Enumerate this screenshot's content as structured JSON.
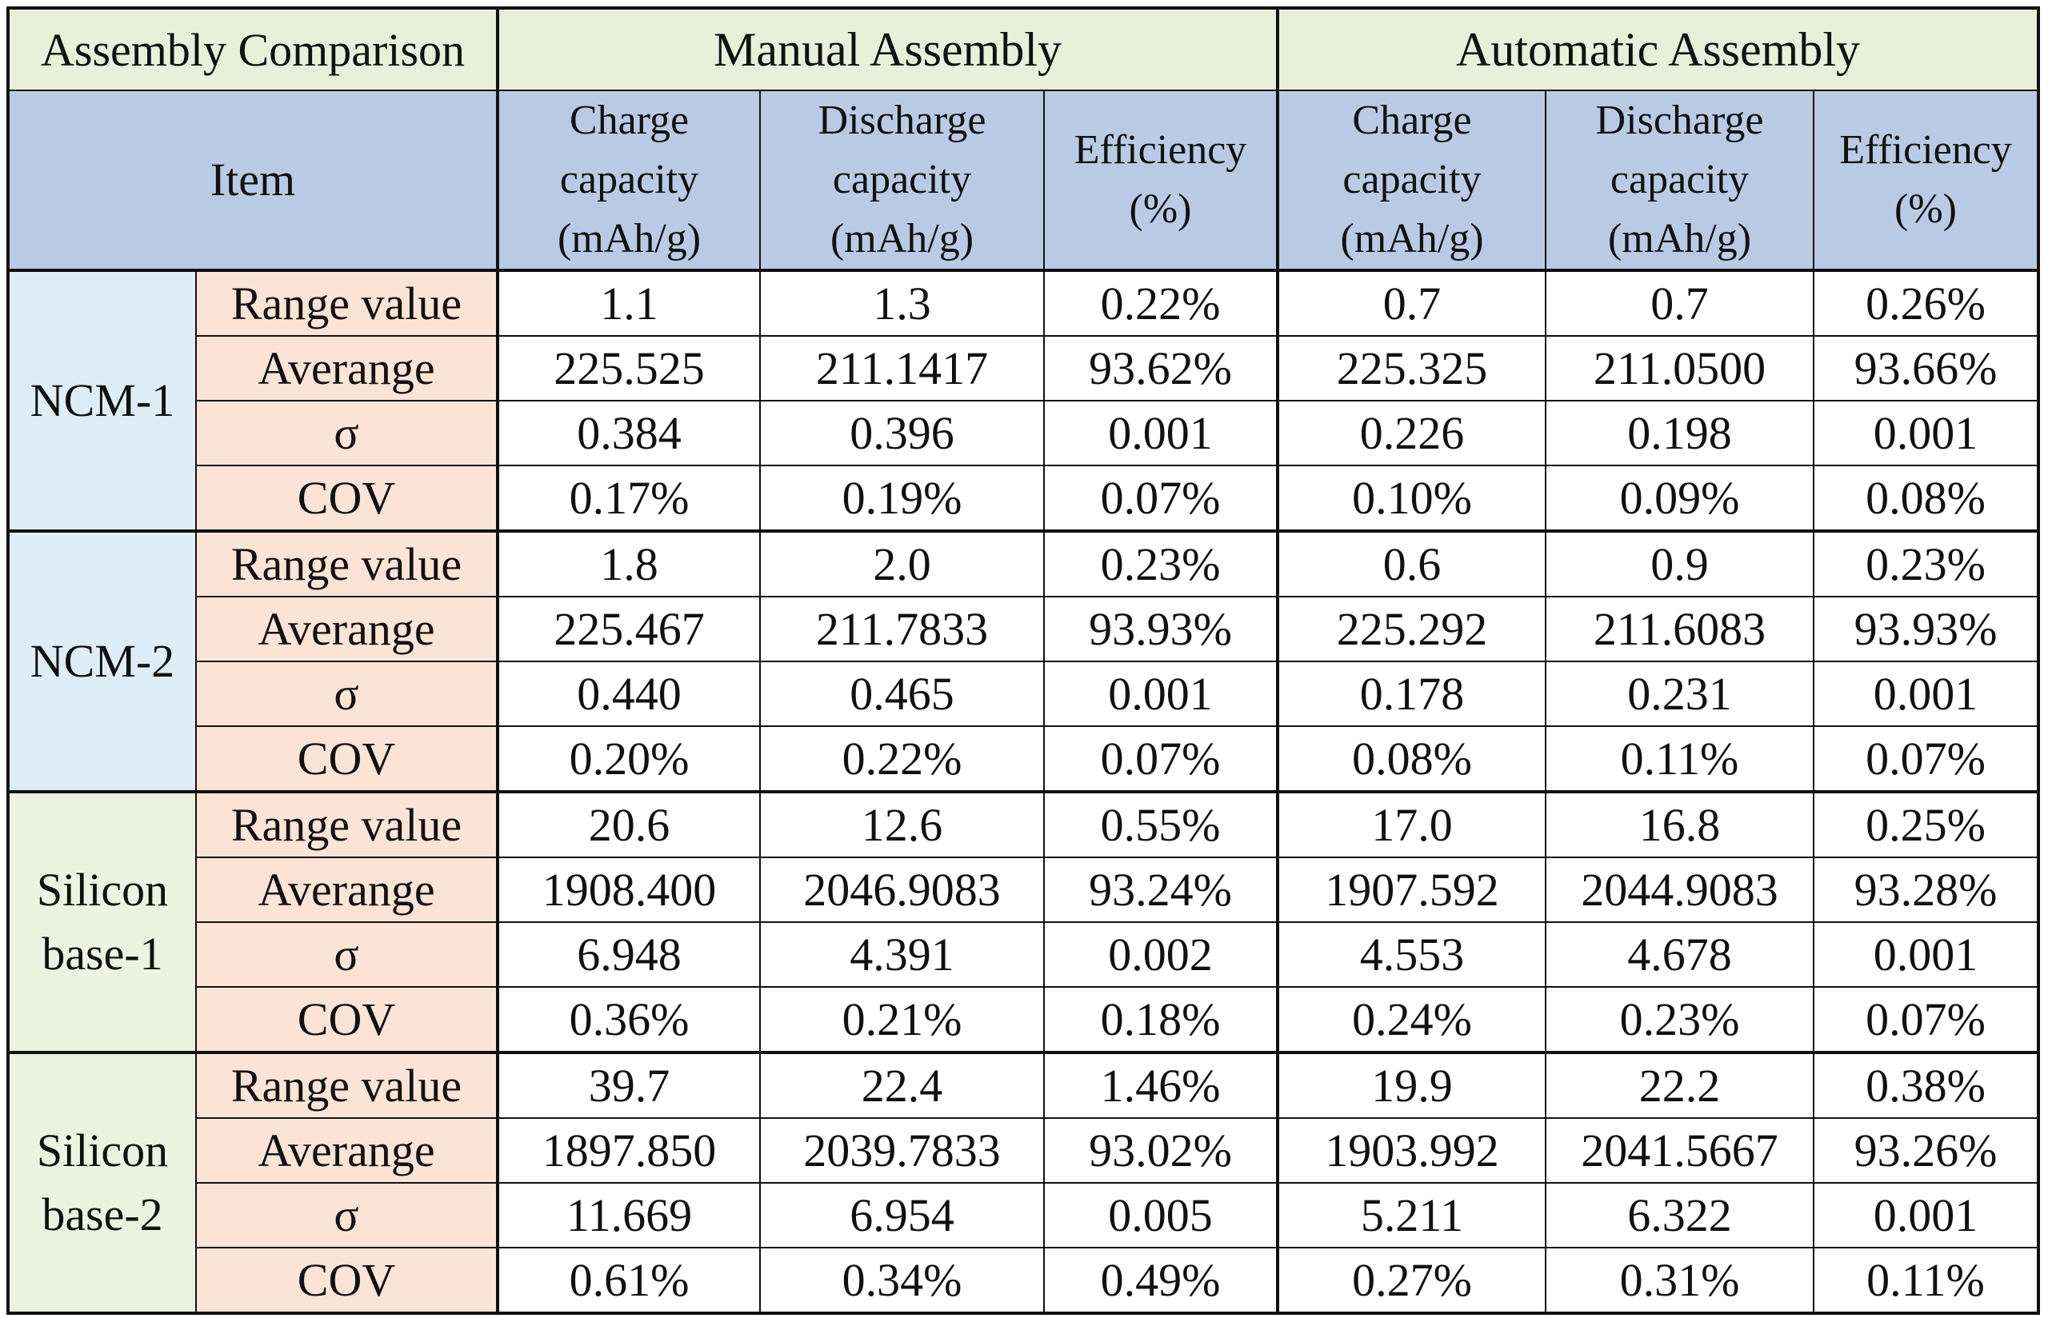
{
  "table": {
    "corner_title": "Assembly Comparison",
    "manual_title": "Manual Assembly",
    "automatic_title": "Automatic Assembly",
    "item_label": "Item",
    "metric_headers": [
      [
        "Charge",
        "capacity",
        "(mAh/g)"
      ],
      [
        "Discharge",
        "capacity",
        "(mAh/g)"
      ],
      [
        "Efficiency",
        "(%)"
      ],
      [
        "Charge",
        "capacity",
        "(mAh/g)"
      ],
      [
        "Discharge",
        "capacity",
        "(mAh/g)"
      ],
      [
        "Efficiency",
        "(%)"
      ]
    ],
    "stat_labels": [
      "Range value",
      "Averange",
      "σ",
      "COV"
    ],
    "groups": [
      {
        "name_lines": [
          "NCM-1"
        ],
        "rows": [
          [
            "1.1",
            "1.3",
            "0.22%",
            "0.7",
            "0.7",
            "0.26%"
          ],
          [
            "225.525",
            "211.1417",
            "93.62%",
            "225.325",
            "211.0500",
            "93.66%"
          ],
          [
            "0.384",
            "0.396",
            "0.001",
            "0.226",
            "0.198",
            "0.001"
          ],
          [
            "0.17%",
            "0.19%",
            "0.07%",
            "0.10%",
            "0.09%",
            "0.08%"
          ]
        ]
      },
      {
        "name_lines": [
          "NCM-2"
        ],
        "rows": [
          [
            "1.8",
            "2.0",
            "0.23%",
            "0.6",
            "0.9",
            "0.23%"
          ],
          [
            "225.467",
            "211.7833",
            "93.93%",
            "225.292",
            "211.6083",
            "93.93%"
          ],
          [
            "0.440",
            "0.465",
            "0.001",
            "0.178",
            "0.231",
            "0.001"
          ],
          [
            "0.20%",
            "0.22%",
            "0.07%",
            "0.08%",
            "0.11%",
            "0.07%"
          ]
        ]
      },
      {
        "name_lines": [
          "Silicon",
          "base-1"
        ],
        "rows": [
          [
            "20.6",
            "12.6",
            "0.55%",
            "17.0",
            "16.8",
            "0.25%"
          ],
          [
            "1908.400",
            "2046.9083",
            "93.24%",
            "1907.592",
            "2044.9083",
            "93.28%"
          ],
          [
            "6.948",
            "4.391",
            "0.002",
            "4.553",
            "4.678",
            "0.001"
          ],
          [
            "0.36%",
            "0.21%",
            "0.18%",
            "0.24%",
            "0.23%",
            "0.07%"
          ]
        ]
      },
      {
        "name_lines": [
          "Silicon",
          "base-2"
        ],
        "rows": [
          [
            "39.7",
            "22.4",
            "1.46%",
            "19.9",
            "22.2",
            "0.38%"
          ],
          [
            "1897.850",
            "2039.7833",
            "93.02%",
            "1903.992",
            "2041.5667",
            "93.26%"
          ],
          [
            "11.669",
            "6.954",
            "0.005",
            "5.211",
            "6.322",
            "0.001"
          ],
          [
            "0.61%",
            "0.34%",
            "0.49%",
            "0.27%",
            "0.31%",
            "0.11%"
          ]
        ]
      }
    ],
    "colors": {
      "title_row_bg": "#e9efd9",
      "header_row_bg": "#b9cbe4",
      "stat_label_bg": "#fbe4d5",
      "ncm_group_bg": "#dfeef6",
      "silicon_group_bg": "#eef2e1"
    }
  }
}
